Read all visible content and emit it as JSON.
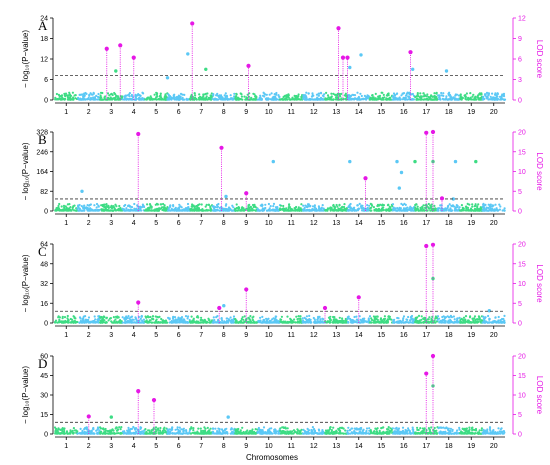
{
  "figure": {
    "xlabel": "Chromosomes",
    "ylabel_left": "− log₁₀(P−value)",
    "ylabel_right": "LOD score",
    "colors": {
      "chrom_even": "#5bc8f5",
      "chrom_odd": "#3ddc84",
      "lod": "#e617e6",
      "threshold": "#333333",
      "axis": "#000000"
    },
    "chromosomes": [
      "1",
      "2",
      "3",
      "4",
      "5",
      "6",
      "7",
      "8",
      "9",
      "10",
      "11",
      "12",
      "13",
      "14",
      "15",
      "16",
      "17",
      "18",
      "19",
      "20"
    ]
  },
  "chart_data": [
    {
      "type": "scatter",
      "panel": "A",
      "ylim": [
        0,
        24
      ],
      "yticks": [
        "0",
        "6",
        "12",
        "18",
        "24"
      ],
      "lod_lim": [
        0,
        12
      ],
      "lod_ticks": [
        "0",
        "3",
        "6",
        "9",
        "12"
      ],
      "threshold": 7.2,
      "lod_peaks": [
        {
          "chrom": 2.8,
          "lod": 7.5
        },
        {
          "chrom": 3.4,
          "lod": 8.0
        },
        {
          "chrom": 4.0,
          "lod": 6.2
        },
        {
          "chrom": 6.6,
          "lod": 11.2
        },
        {
          "chrom": 9.1,
          "lod": 5.0
        },
        {
          "chrom": 13.1,
          "lod": 10.5
        },
        {
          "chrom": 13.3,
          "lod": 6.2
        },
        {
          "chrom": 13.5,
          "lod": 6.2
        },
        {
          "chrom": 16.3,
          "lod": 7.0
        }
      ],
      "highlight_points": [
        {
          "chrom": 3.2,
          "y": 8.5
        },
        {
          "chrom": 5.5,
          "y": 6.5
        },
        {
          "chrom": 6.4,
          "y": 13.5
        },
        {
          "chrom": 7.2,
          "y": 9.0
        },
        {
          "chrom": 13.6,
          "y": 9.5
        },
        {
          "chrom": 14.1,
          "y": 13.2
        },
        {
          "chrom": 16.4,
          "y": 9.0
        },
        {
          "chrom": 17.9,
          "y": 8.5
        }
      ]
    },
    {
      "type": "scatter",
      "panel": "B",
      "ylim": [
        0,
        328
      ],
      "yticks": [
        "0",
        "82",
        "164",
        "246",
        "328"
      ],
      "lod_lim": [
        0,
        20
      ],
      "lod_ticks": [
        "0",
        "5",
        "10",
        "15",
        "20"
      ],
      "threshold": 50,
      "lod_peaks": [
        {
          "chrom": 4.2,
          "lod": 19.5
        },
        {
          "chrom": 7.9,
          "lod": 16.0
        },
        {
          "chrom": 9.0,
          "lod": 4.5
        },
        {
          "chrom": 14.3,
          "lod": 8.3
        },
        {
          "chrom": 17.0,
          "lod": 19.8
        },
        {
          "chrom": 17.3,
          "lod": 20.0
        },
        {
          "chrom": 17.7,
          "lod": 3.2
        }
      ],
      "highlight_points": [
        {
          "chrom": 1.7,
          "y": 82
        },
        {
          "chrom": 8.1,
          "y": 60
        },
        {
          "chrom": 10.2,
          "y": 205
        },
        {
          "chrom": 13.6,
          "y": 205
        },
        {
          "chrom": 15.7,
          "y": 205
        },
        {
          "chrom": 15.8,
          "y": 95
        },
        {
          "chrom": 15.9,
          "y": 160
        },
        {
          "chrom": 16.5,
          "y": 205
        },
        {
          "chrom": 17.3,
          "y": 205
        },
        {
          "chrom": 18.3,
          "y": 205
        },
        {
          "chrom": 19.2,
          "y": 205
        },
        {
          "chrom": 18.2,
          "y": 50
        }
      ]
    },
    {
      "type": "scatter",
      "panel": "C",
      "ylim": [
        0,
        64
      ],
      "yticks": [
        "0",
        "16",
        "32",
        "48",
        "64"
      ],
      "lod_lim": [
        0,
        20
      ],
      "lod_ticks": [
        "0",
        "5",
        "10",
        "15",
        "20"
      ],
      "threshold": 9.5,
      "lod_peaks": [
        {
          "chrom": 4.2,
          "lod": 5.2
        },
        {
          "chrom": 7.8,
          "lod": 3.8
        },
        {
          "chrom": 9.0,
          "lod": 8.5
        },
        {
          "chrom": 12.5,
          "lod": 3.8
        },
        {
          "chrom": 14.0,
          "lod": 6.5
        },
        {
          "chrom": 17.0,
          "lod": 19.5
        },
        {
          "chrom": 17.3,
          "lod": 19.8
        }
      ],
      "highlight_points": [
        {
          "chrom": 8.0,
          "y": 14
        },
        {
          "chrom": 17.3,
          "y": 36
        },
        {
          "chrom": 19.8,
          "y": 10
        }
      ]
    },
    {
      "type": "scatter",
      "panel": "D",
      "ylim": [
        0,
        60
      ],
      "yticks": [
        "0",
        "15",
        "30",
        "45",
        "60"
      ],
      "lod_lim": [
        0,
        20
      ],
      "lod_ticks": [
        "0",
        "5",
        "10",
        "15",
        "20"
      ],
      "threshold": 9.0,
      "lod_peaks": [
        {
          "chrom": 2.0,
          "lod": 4.5
        },
        {
          "chrom": 4.2,
          "lod": 11.0
        },
        {
          "chrom": 4.9,
          "lod": 8.7
        },
        {
          "chrom": 17.0,
          "lod": 15.5
        },
        {
          "chrom": 17.3,
          "lod": 20.0
        }
      ],
      "highlight_points": [
        {
          "chrom": 3.0,
          "y": 13
        },
        {
          "chrom": 8.2,
          "y": 13
        },
        {
          "chrom": 17.3,
          "y": 37
        }
      ]
    }
  ]
}
